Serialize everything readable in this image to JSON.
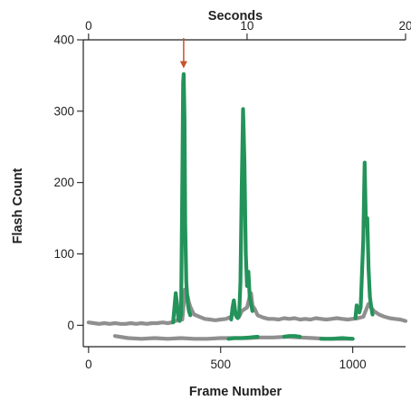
{
  "chart_data": {
    "type": "line",
    "title": "",
    "xlabel": "Frame Number",
    "ylabel": "Flash Count",
    "x2label": "Seconds",
    "xlim": [
      -20,
      1200
    ],
    "ylim": [
      -30,
      400
    ],
    "x_ticks": [
      0,
      500,
      1000
    ],
    "x_tick_labels": [
      "0",
      "500",
      "1000"
    ],
    "y_ticks": [
      0,
      100,
      200,
      300,
      400
    ],
    "y_tick_labels": [
      "0",
      "100",
      "200",
      "300",
      "400"
    ],
    "x2_ticks": [
      0,
      10,
      20
    ],
    "x2_tick_labels": [
      "0",
      "10",
      "20"
    ],
    "x2_frames_per_second": 60,
    "grid": false,
    "colors": {
      "gray": "#8f8f8f",
      "green": "#23935a",
      "arrow": "#c7532c",
      "axis": "#222222"
    },
    "annotations": [
      {
        "type": "arrow",
        "x": 360,
        "y_from": 400,
        "y_to": 360,
        "color": "#c7532c"
      }
    ],
    "series": [
      {
        "color": "gray",
        "points": [
          [
            0,
            4
          ],
          [
            20,
            3
          ],
          [
            40,
            2
          ],
          [
            60,
            3
          ],
          [
            80,
            2
          ],
          [
            100,
            3
          ],
          [
            120,
            2
          ],
          [
            140,
            2
          ],
          [
            160,
            3
          ],
          [
            180,
            2
          ],
          [
            200,
            3
          ],
          [
            220,
            2
          ],
          [
            240,
            3
          ],
          [
            260,
            3
          ],
          [
            280,
            4
          ],
          [
            300,
            3
          ],
          [
            315,
            4
          ],
          [
            320,
            5
          ],
          [
            330,
            6
          ],
          [
            345,
            8
          ],
          [
            355,
            8
          ],
          [
            360,
            30
          ],
          [
            365,
            50
          ],
          [
            370,
            45
          ],
          [
            375,
            40
          ],
          [
            380,
            32
          ],
          [
            385,
            26
          ],
          [
            390,
            22
          ],
          [
            395,
            18
          ],
          [
            400,
            15
          ],
          [
            420,
            12
          ],
          [
            440,
            9
          ],
          [
            460,
            8
          ],
          [
            480,
            7
          ],
          [
            500,
            8
          ],
          [
            520,
            9
          ],
          [
            540,
            12
          ],
          [
            550,
            18
          ],
          [
            560,
            15
          ],
          [
            570,
            12
          ],
          [
            580,
            20
          ],
          [
            600,
            25
          ],
          [
            610,
            40
          ],
          [
            615,
            45
          ],
          [
            620,
            28
          ],
          [
            630,
            22
          ],
          [
            640,
            14
          ],
          [
            660,
            11
          ],
          [
            680,
            9
          ],
          [
            700,
            9
          ],
          [
            720,
            8
          ],
          [
            740,
            10
          ],
          [
            760,
            9
          ],
          [
            780,
            10
          ],
          [
            800,
            8
          ],
          [
            820,
            9
          ],
          [
            840,
            8
          ],
          [
            860,
            10
          ],
          [
            880,
            9
          ],
          [
            900,
            8
          ],
          [
            920,
            9
          ],
          [
            940,
            10
          ],
          [
            960,
            9
          ],
          [
            980,
            8
          ],
          [
            1000,
            9
          ],
          [
            1020,
            10
          ],
          [
            1040,
            12
          ],
          [
            1060,
            30
          ],
          [
            1080,
            20
          ],
          [
            1100,
            15
          ],
          [
            1120,
            12
          ],
          [
            1140,
            10
          ],
          [
            1160,
            9
          ],
          [
            1180,
            8
          ],
          [
            1200,
            6
          ]
        ]
      },
      {
        "color": "green",
        "points": [
          [
            320,
            4
          ],
          [
            325,
            25
          ],
          [
            330,
            45
          ],
          [
            335,
            30
          ],
          [
            340,
            8
          ],
          [
            345,
            6
          ],
          [
            350,
            15
          ],
          [
            355,
            200
          ],
          [
            358,
            340
          ],
          [
            360,
            352
          ],
          [
            363,
            290
          ],
          [
            366,
            140
          ],
          [
            370,
            60
          ],
          [
            375,
            32
          ],
          [
            380,
            20
          ],
          [
            385,
            14
          ]
        ]
      },
      {
        "color": "green",
        "points": [
          [
            540,
            8
          ],
          [
            545,
            25
          ],
          [
            550,
            35
          ],
          [
            555,
            20
          ],
          [
            560,
            12
          ],
          [
            565,
            10
          ],
          [
            570,
            15
          ],
          [
            575,
            60
          ],
          [
            580,
            200
          ],
          [
            585,
            303
          ],
          [
            590,
            230
          ],
          [
            595,
            100
          ],
          [
            600,
            55
          ],
          [
            605,
            75
          ],
          [
            610,
            40
          ],
          [
            620,
            20
          ]
        ]
      },
      {
        "color": "green",
        "points": [
          [
            1010,
            10
          ],
          [
            1015,
            28
          ],
          [
            1020,
            22
          ],
          [
            1025,
            18
          ],
          [
            1030,
            25
          ],
          [
            1040,
            120
          ],
          [
            1045,
            228
          ],
          [
            1050,
            140
          ],
          [
            1055,
            150
          ],
          [
            1060,
            80
          ],
          [
            1065,
            40
          ],
          [
            1070,
            25
          ],
          [
            1075,
            15
          ]
        ]
      },
      {
        "color": "gray",
        "points": [
          [
            100,
            -15
          ],
          [
            150,
            -18
          ],
          [
            200,
            -19
          ],
          [
            250,
            -18
          ],
          [
            300,
            -19
          ],
          [
            350,
            -18
          ],
          [
            400,
            -19
          ],
          [
            450,
            -19
          ],
          [
            500,
            -18
          ],
          [
            550,
            -18
          ],
          [
            600,
            -18
          ],
          [
            650,
            -17
          ],
          [
            700,
            -17
          ],
          [
            750,
            -16
          ],
          [
            800,
            -17
          ],
          [
            850,
            -18
          ],
          [
            900,
            -19
          ],
          [
            950,
            -19
          ],
          [
            1000,
            -19
          ]
        ]
      },
      {
        "color": "green",
        "points": [
          [
            530,
            -19
          ],
          [
            550,
            -18
          ],
          [
            580,
            -18
          ],
          [
            610,
            -17
          ],
          [
            640,
            -16
          ]
        ]
      },
      {
        "color": "green",
        "points": [
          [
            740,
            -16
          ],
          [
            760,
            -15
          ],
          [
            780,
            -15
          ],
          [
            800,
            -16
          ]
        ]
      },
      {
        "color": "green",
        "points": [
          [
            880,
            -19
          ],
          [
            920,
            -19
          ],
          [
            960,
            -18
          ],
          [
            1000,
            -19
          ]
        ]
      }
    ]
  }
}
